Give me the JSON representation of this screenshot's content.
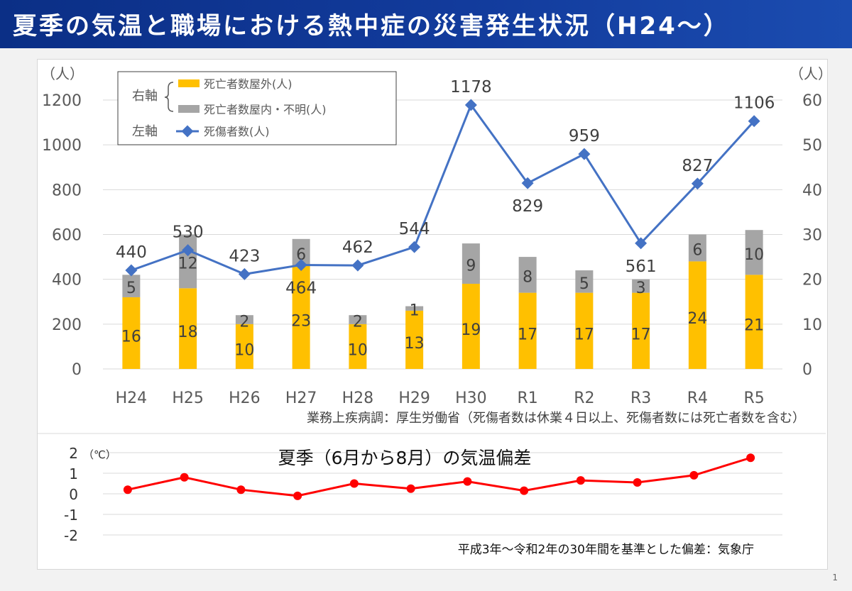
{
  "title": "夏季の気温と職場における熱中症の災害発生状況（H24～）",
  "page_number": "1",
  "chart_data": [
    {
      "type": "bar+line",
      "categories": [
        "H24",
        "H25",
        "H26",
        "H27",
        "H28",
        "H29",
        "H30",
        "R1",
        "R2",
        "R3",
        "R4",
        "R5"
      ],
      "left_axis": {
        "unit_label": "（人）",
        "ylim": [
          0,
          1200
        ],
        "ticks": [
          "0",
          "200",
          "400",
          "600",
          "800",
          "1000",
          "1200"
        ]
      },
      "right_axis": {
        "unit_label": "（人）",
        "ylim": [
          0,
          60
        ],
        "ticks": [
          "0",
          "10",
          "20",
          "30",
          "40",
          "50",
          "60"
        ]
      },
      "series": [
        {
          "name": "死亡者数屋外(人)",
          "type": "stacked-bar",
          "axis": "right",
          "color": "#ffc000",
          "values": [
            16,
            18,
            10,
            23,
            10,
            13,
            19,
            17,
            17,
            17,
            24,
            21
          ]
        },
        {
          "name": "死亡者数屋内・不明(人)",
          "type": "stacked-bar",
          "axis": "right",
          "color": "#a5a5a5",
          "values": [
            5,
            12,
            2,
            6,
            2,
            1,
            9,
            8,
            5,
            3,
            6,
            10
          ]
        },
        {
          "name": "死傷者数(人)",
          "type": "line",
          "axis": "left",
          "color": "#4472c4",
          "values": [
            440,
            530,
            423,
            464,
            462,
            544,
            1178,
            829,
            959,
            561,
            827,
            1106
          ]
        }
      ],
      "legend": {
        "right_axis_label": "右軸",
        "left_axis_label": "左軸",
        "placement": "top-left"
      },
      "source_note": "業務上疾病調：厚生労働省（死傷者数は休業４日以上、死傷者数には死亡者数を含む）"
    },
    {
      "type": "line",
      "title": "夏季（6月から8月）の気温偏差",
      "unit_label": "（℃）",
      "ylim": [
        -2,
        2
      ],
      "ticks": [
        "-2",
        "-1",
        "0",
        "1",
        "2"
      ],
      "color": "#ff0000",
      "values": [
        0.2,
        0.8,
        0.2,
        -0.1,
        0.5,
        0.25,
        0.6,
        0.15,
        0.65,
        0.55,
        0.9,
        1.75
      ],
      "source_note": "平成3年～令和2年の30年間を基準とした偏差：気象庁"
    }
  ]
}
